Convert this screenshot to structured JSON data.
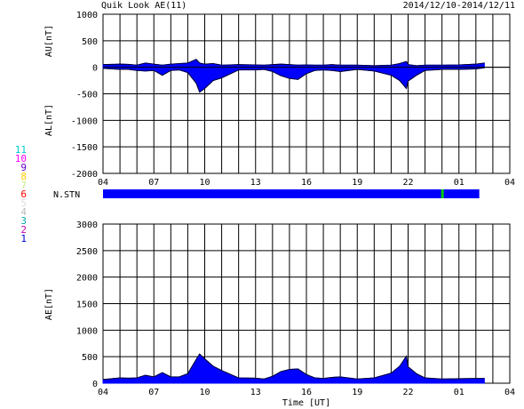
{
  "header": {
    "title": "Quik Look AE(11)",
    "date_range": "2014/12/10-2014/12/11"
  },
  "colors": {
    "axis": "#000000",
    "fill": "#0000ff",
    "bar": "#0000ff",
    "marker": "#00cc00"
  },
  "legend": {
    "items": [
      {
        "label": "11",
        "color": "#00cccc"
      },
      {
        "label": "10",
        "color": "#ff00ff"
      },
      {
        "label": "9",
        "color": "#6600cc"
      },
      {
        "label": "8",
        "color": "#ffcc00"
      },
      {
        "label": "7",
        "color": "#ccee88"
      },
      {
        "label": "6",
        "color": "#ff0000"
      },
      {
        "label": "5",
        "color": "#dddddd"
      },
      {
        "label": "4",
        "color": "#bbbbbb"
      },
      {
        "label": "3",
        "color": "#00aaaa"
      },
      {
        "label": "2",
        "color": "#cc00aa"
      },
      {
        "label": "1",
        "color": "#0000cc"
      }
    ]
  },
  "chart_data": [
    {
      "type": "area",
      "title": "",
      "xlabel": "",
      "ylabel_upper": "AU[nT]",
      "ylabel_lower": "AL[nT]",
      "x_ticks": [
        "04",
        "07",
        "10",
        "13",
        "16",
        "19",
        "22",
        "01",
        "04"
      ],
      "y_ticks": [
        1000,
        500,
        0,
        -500,
        -1000,
        -1500,
        -2000
      ],
      "ylim": [
        -2000,
        1000
      ],
      "grid": true,
      "x_hours": [
        0,
        1,
        1.5,
        2,
        2.5,
        3,
        3.5,
        4,
        4.5,
        5,
        5.5,
        5.7,
        6,
        6.5,
        7,
        8,
        9,
        9.5,
        10,
        10.5,
        11,
        11.5,
        12,
        12.5,
        13,
        13.5,
        14,
        15,
        16,
        17,
        17.5,
        17.9,
        18,
        18.5,
        19,
        20,
        21,
        22,
        22.5
      ],
      "au": [
        50,
        60,
        55,
        40,
        80,
        60,
        40,
        60,
        70,
        80,
        150,
        80,
        60,
        70,
        40,
        50,
        45,
        40,
        50,
        60,
        50,
        40,
        45,
        40,
        40,
        50,
        40,
        40,
        30,
        40,
        70,
        110,
        50,
        30,
        40,
        40,
        45,
        60,
        80
      ],
      "al": [
        -20,
        -40,
        -40,
        -60,
        -70,
        -60,
        -150,
        -60,
        -50,
        -100,
        -300,
        -470,
        -400,
        -250,
        -200,
        -50,
        -50,
        -40,
        -80,
        -160,
        -210,
        -230,
        -120,
        -60,
        -50,
        -60,
        -80,
        -40,
        -70,
        -150,
        -250,
        -400,
        -260,
        -150,
        -60,
        -40,
        -40,
        -30,
        -10
      ]
    },
    {
      "type": "area",
      "title": "",
      "xlabel": "Time [UT]",
      "ylabel": "AE[nT]",
      "x_ticks": [
        "04",
        "07",
        "10",
        "13",
        "16",
        "19",
        "22",
        "01",
        "04"
      ],
      "y_ticks": [
        3000,
        2500,
        2000,
        1500,
        1000,
        500,
        0
      ],
      "ylim": [
        0,
        3000
      ],
      "grid": true,
      "x_hours": [
        0,
        1,
        1.5,
        2,
        2.5,
        3,
        3.5,
        4,
        4.5,
        5,
        5.5,
        5.7,
        6,
        6.5,
        7,
        8,
        9,
        9.5,
        10,
        10.5,
        11,
        11.5,
        12,
        12.5,
        13,
        13.5,
        14,
        15,
        16,
        17,
        17.5,
        17.9,
        18,
        18.5,
        19,
        20,
        21,
        22,
        22.5
      ],
      "ae": [
        70,
        100,
        95,
        100,
        150,
        120,
        200,
        120,
        120,
        180,
        450,
        550,
        460,
        320,
        240,
        100,
        95,
        80,
        130,
        220,
        260,
        270,
        165,
        100,
        90,
        110,
        120,
        80,
        100,
        190,
        320,
        510,
        310,
        180,
        100,
        80,
        85,
        90,
        90
      ]
    }
  ],
  "station_bar": {
    "label": "N.STN",
    "marker_hour": 20.0,
    "end_hour": 22.2
  }
}
